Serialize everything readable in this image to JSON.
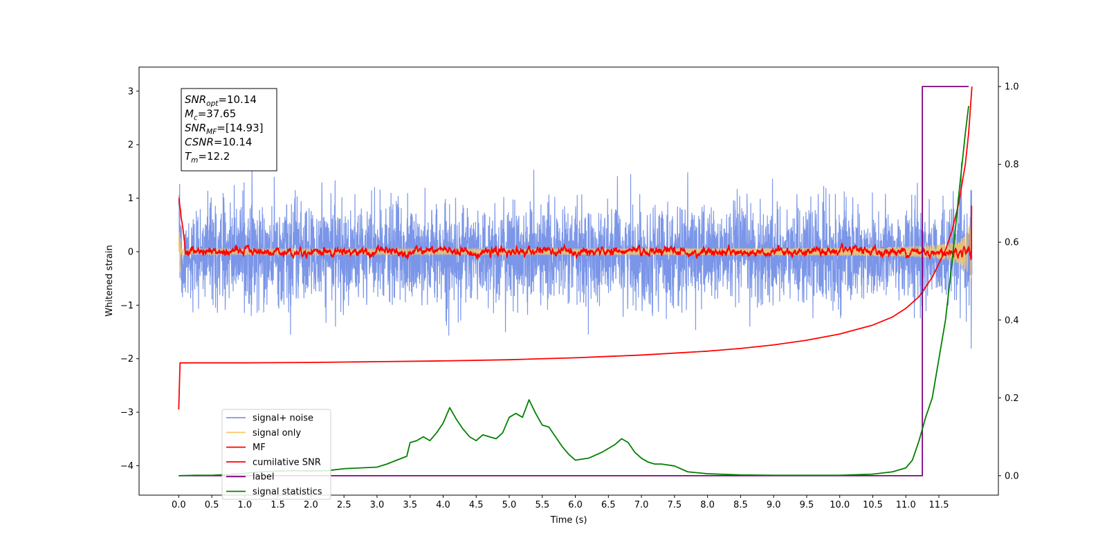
{
  "chart_data": {
    "type": "line",
    "xlabel": "Time (s)",
    "ylabel": "Whitened strain",
    "y2label": "",
    "xlim": [
      -0.6,
      12.4
    ],
    "ylim": [
      -4.55,
      3.45
    ],
    "y2lim": [
      -0.05,
      1.05
    ],
    "x_ticks": [
      "0.0",
      "0.5",
      "1.0",
      "1.5",
      "2.0",
      "2.5",
      "3.0",
      "3.5",
      "4.0",
      "4.5",
      "5.0",
      "5.5",
      "6.0",
      "6.5",
      "7.0",
      "7.5",
      "8.0",
      "8.5",
      "9.0",
      "9.5",
      "10.0",
      "10.5",
      "11.0",
      "11.5"
    ],
    "y_ticks": [
      "3",
      "2",
      "1",
      "0",
      "−1",
      "−2",
      "−3",
      "−4"
    ],
    "y_tick_values": [
      3,
      2,
      1,
      0,
      -1,
      -2,
      -3,
      -4
    ],
    "y2_ticks": [
      "1.0",
      "0.8",
      "0.6",
      "0.4",
      "0.2",
      "0.0"
    ],
    "y2_tick_values": [
      1.0,
      0.8,
      0.6,
      0.4,
      0.2,
      0.0
    ],
    "grid": false,
    "legend_position": "lower-left",
    "info_box": {
      "lines": [
        {
          "var": "SNR",
          "sub": "opt",
          "value": "=10.14"
        },
        {
          "var": "M",
          "sub": "c",
          "value": "=37.65"
        },
        {
          "var": "SNR",
          "sub": "MF",
          "value": "=[14.93]"
        },
        {
          "var": "CSNR",
          "sub": "",
          "value": "=10.14"
        },
        {
          "var": "T",
          "sub": "m",
          "value": "=12.2"
        }
      ]
    },
    "series": [
      {
        "name": "signal+ noise",
        "color": "#7b96e8",
        "axis": "left",
        "description_amplitude": 1.0,
        "x_range": [
          0.0,
          12.0
        ]
      },
      {
        "name": "signal only",
        "color": "#f5c96b",
        "axis": "left",
        "x_range": [
          0.0,
          12.0
        ]
      },
      {
        "name": "MF",
        "color": "#ff0000",
        "axis": "left",
        "x_range": [
          0.0,
          12.0
        ]
      },
      {
        "name": "cumilative SNR",
        "color": "#ff0000",
        "axis": "right",
        "x": [
          0.0,
          0.02,
          0.5,
          1.0,
          2.0,
          3.0,
          4.0,
          5.0,
          6.0,
          7.0,
          8.0,
          8.5,
          9.0,
          9.5,
          10.0,
          10.5,
          10.8,
          11.0,
          11.2,
          11.4,
          11.6,
          11.7,
          11.8,
          11.9,
          11.95,
          12.0
        ],
        "y": [
          0.17,
          0.29,
          0.29,
          0.29,
          0.291,
          0.293,
          0.295,
          0.298,
          0.303,
          0.31,
          0.32,
          0.327,
          0.336,
          0.348,
          0.364,
          0.387,
          0.408,
          0.43,
          0.46,
          0.51,
          0.58,
          0.63,
          0.7,
          0.8,
          0.88,
          1.0
        ]
      },
      {
        "name": "label",
        "color": "#800080",
        "axis": "right",
        "x": [
          0.0,
          11.2,
          11.2,
          11.25,
          11.25,
          11.95
        ],
        "y": [
          0.0,
          0.0,
          0.0,
          0.0,
          1.0,
          1.0
        ]
      },
      {
        "name": "signal statistics",
        "color": "#008000",
        "axis": "right",
        "x": [
          0.0,
          0.25,
          0.5,
          0.75,
          1.0,
          1.25,
          1.5,
          1.75,
          2.0,
          2.25,
          2.5,
          2.75,
          3.0,
          3.15,
          3.3,
          3.45,
          3.5,
          3.6,
          3.7,
          3.8,
          3.9,
          4.0,
          4.1,
          4.2,
          4.3,
          4.4,
          4.5,
          4.6,
          4.7,
          4.8,
          4.9,
          5.0,
          5.1,
          5.2,
          5.3,
          5.4,
          5.5,
          5.6,
          5.7,
          5.8,
          5.9,
          6.0,
          6.2,
          6.4,
          6.5,
          6.6,
          6.7,
          6.8,
          6.9,
          7.0,
          7.1,
          7.2,
          7.3,
          7.5,
          7.7,
          8.0,
          8.5,
          9.0,
          9.5,
          10.0,
          10.5,
          10.8,
          11.0,
          11.1,
          11.2,
          11.3,
          11.4,
          11.5,
          11.6,
          11.7,
          11.8,
          11.9,
          11.95
        ],
        "y": [
          0.0,
          0.001,
          0.001,
          0.003,
          0.006,
          0.01,
          0.012,
          0.013,
          0.012,
          0.013,
          0.018,
          0.02,
          0.022,
          0.03,
          0.04,
          0.05,
          0.085,
          0.09,
          0.1,
          0.09,
          0.11,
          0.135,
          0.175,
          0.145,
          0.12,
          0.1,
          0.09,
          0.105,
          0.1,
          0.095,
          0.11,
          0.15,
          0.16,
          0.15,
          0.195,
          0.16,
          0.13,
          0.125,
          0.1,
          0.075,
          0.055,
          0.04,
          0.045,
          0.06,
          0.07,
          0.08,
          0.095,
          0.085,
          0.06,
          0.045,
          0.035,
          0.03,
          0.03,
          0.025,
          0.01,
          0.005,
          0.002,
          0.001,
          0.001,
          0.001,
          0.004,
          0.01,
          0.02,
          0.04,
          0.09,
          0.15,
          0.2,
          0.3,
          0.4,
          0.55,
          0.72,
          0.88,
          0.95
        ]
      }
    ]
  }
}
